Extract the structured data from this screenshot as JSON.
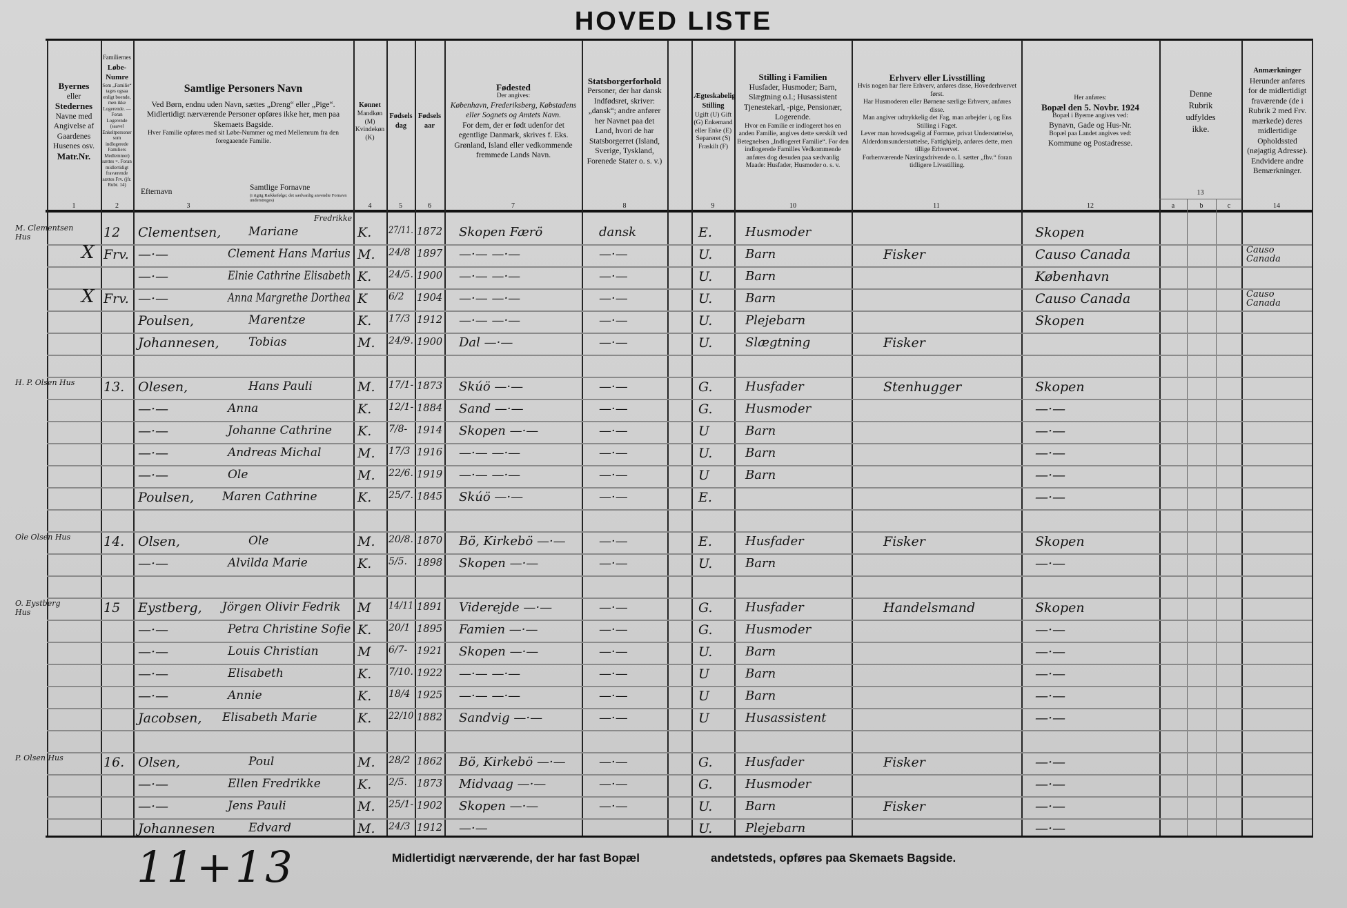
{
  "title": "HOVED LISTE",
  "header": {
    "col1": [
      "Byernes",
      "eller",
      "Stedernes",
      "Navne med Angivelse af Gaardenes Husenes osv.",
      "Matr.Nr."
    ],
    "col2": [
      "Familiernes",
      "Løbe-Numre",
      "Som „Familie“ tages ogsaa enligt boende, men ikke Logerende. — Foran Logerende (saavel Enkeltpersoner som indlogerede Familiers Medlemmer) sættes ×. Foran midlertidigt fraværende sættes Frv. (jfr. Rubr. 14)"
    ],
    "col3": [
      "Samtlige Personers Navn",
      "Ved Børn, endnu uden Navn, sættes „Dreng“ eller „Pige“.",
      "Midlertidigt nærværende Personer opføres ikke her, men paa Skemaets Bagside.",
      "Hver Familie opføres med sit Løbe-Nummer og med Mellemrum fra den foregaaende Familie."
    ],
    "col3_surname": "Efternavn",
    "col3_firstnames": "Samtlige Fornavne",
    "col3_firstnames_note": "(i rigtig Rækkefølge; det sædvanlig anvendte Fornavn understreges)",
    "col4": [
      "Kønnet",
      "Mandkøn (M)",
      "Kvindekøn (K)"
    ],
    "col5": "Fødselsdag",
    "col6": "Fødselsaar",
    "col7": [
      "Fødested",
      "Der angives:",
      "København, Frederiksberg, Købstadens eller Sognets og Amtets Navn.",
      "For dem, der er født udenfor det egentlige Danmark, skrives f. Eks. Grønland, Island eller vedkommende fremmede Lands Navn."
    ],
    "col8": [
      "Statsborgerforhold",
      "Personer, der har dansk Indfødsret, skriver: „dansk“; andre anfører her Navnet paa det Land, hvori de har Statsborgerret (Island, Sverige, Tyskland, Forenede Stater o. s. v.)"
    ],
    "col9": [
      "Ægteskabelig Stilling",
      "Ugift (U) Gift (G) Enkemand eller Enke (E) Separeret (S) Fraskilt (F)"
    ],
    "col10": [
      "Stilling i Familien",
      "Husfader, Husmoder; Barn, Slægtning o.l.; Husassistent Tjenestekarl, -pige, Pensionær, Logerende.",
      "Hvor en Familie er indlogeret hos en anden Familie, angives dette særskilt ved Betegnelsen „Indlogeret Familie“. For den indlogerede Familles Vedkommende anføres dog desuden paa sædvanlig Maade: Husfader, Husmoder o. s. v."
    ],
    "col11": [
      "Erhverv eller Livsstilling",
      "Hvis nogen har flere Erhverv, anføres disse, Hovederhvervet først.",
      "Har Husmoderen eller Børnene særlige Erhverv, anføres disse.",
      "Man angiver udtrykkelig det Fag, man arbejder i, og Ens Stilling i Faget.",
      "Lever man hovedsagelig af Formue, privat Understøttelse, Alderdomsunderstøttelse, Fattighjælp, anføres dette, men tillige Erhvervet.",
      "Forhenværende Næringsdrivende o. l. sætter „fhv.“ foran tidligere Livsstilling."
    ],
    "col12": [
      "Her anføres:",
      "Bopæl den 5. Novbr. 1924",
      "Bopæl i Byerne angives ved:",
      "Bynavn, Gade og Hus-Nr.",
      "Bopæl paa Landet angives ved:",
      "Kommune og Postadresse."
    ],
    "col13": [
      "Denne Rubrik udfyldes ikke."
    ],
    "col13_sub": [
      "a",
      "b",
      "c"
    ],
    "col14": [
      "Anmærkninger",
      "Herunder anføres for de midlertidigt fraværende (de i Rubrik 2 med Frv. mærkede) deres midlertidige Opholdssted (nøjagtig Adresse). Endvidere andre Bemærkninger."
    ],
    "numbers": [
      "1",
      "2",
      "3",
      "4",
      "5",
      "6",
      "7",
      "8",
      "9",
      "10",
      "11",
      "12",
      "13",
      "14"
    ]
  },
  "rows": [
    {
      "place": "M. Clementsen Hus",
      "no": "12",
      "surname": "Clementsen,",
      "first": "Mariane",
      "first_extra": "Fredrikke",
      "sex": "K.",
      "day": "27/11.",
      "year": "1872",
      "birth": "Skopen Færö",
      "cit": "dansk",
      "mar": "E.",
      "pos": "Husmoder",
      "occ": "",
      "res": "Skopen",
      "note": ""
    },
    {
      "place": "",
      "mark": "X",
      "no": "Frv.",
      "surname": "—·—",
      "first": "Clement Hans Marius",
      "sex": "M.",
      "day": "24/8",
      "year": "1897",
      "birth": "—·— —·—",
      "cit": "—·—",
      "mar": "U.",
      "pos": "Barn",
      "occ": "Fisker",
      "res": "Causo Canada",
      "note": "Causo Canada"
    },
    {
      "place": "",
      "no": "",
      "surname": "—·—",
      "first": "Elnie Cathrine Elisabeth",
      "sex": "K.",
      "day": "24/5.",
      "year": "1900",
      "birth": "—·— —·—",
      "cit": "—·—",
      "mar": "U.",
      "pos": "Barn",
      "occ": "",
      "res": "København",
      "note": ""
    },
    {
      "place": "",
      "mark": "X",
      "no": "Frv.",
      "surname": "—·—",
      "first": "Anna Margrethe Dorthea",
      "sex": "K",
      "day": "6/2",
      "year": "1904",
      "birth": "—·— —·—",
      "cit": "—·—",
      "mar": "U.",
      "pos": "Barn",
      "occ": "",
      "res": "Causo Canada",
      "note": "Causo Canada"
    },
    {
      "place": "",
      "no": "",
      "surname": "Poulsen,",
      "first": "Marentze",
      "sex": "K.",
      "day": "17/3",
      "year": "1912",
      "birth": "—·— —·—",
      "cit": "—·—",
      "mar": "U.",
      "pos": "Plejebarn",
      "occ": "",
      "res": "Skopen",
      "note": ""
    },
    {
      "place": "",
      "no": "",
      "surname": "Johannesen,",
      "first": "Tobias",
      "sex": "M.",
      "day": "24/9.",
      "year": "1900",
      "birth": "Dal  —·—",
      "cit": "—·—",
      "mar": "U.",
      "pos": "Slægtning",
      "occ": "Fisker",
      "res": "",
      "note": ""
    },
    {
      "place": "",
      "no": "",
      "surname": "",
      "first": "",
      "sex": "",
      "day": "",
      "year": "",
      "birth": "",
      "cit": "",
      "mar": "",
      "pos": "",
      "occ": "",
      "res": "",
      "note": ""
    },
    {
      "place": "H. P. Olsen Hus",
      "no": "13.",
      "surname": "Olesen,",
      "first": "Hans Pauli",
      "sex": "M.",
      "day": "17/1-",
      "year": "1873",
      "birth": "Skúö  —·—",
      "cit": "—·—",
      "mar": "G.",
      "pos": "Husfader",
      "occ": "Stenhugger",
      "res": "Skopen",
      "note": ""
    },
    {
      "place": "",
      "no": "",
      "surname": "—·—",
      "first": "Anna",
      "sex": "K.",
      "day": "12/1-",
      "year": "1884",
      "birth": "Sand  —·—",
      "cit": "—·—",
      "mar": "G.",
      "pos": "Husmoder",
      "occ": "",
      "res": "—·—",
      "note": ""
    },
    {
      "place": "",
      "no": "",
      "surname": "—·—",
      "first": "Johanne Cathrine",
      "sex": "K.",
      "day": "7/8-",
      "year": "1914",
      "birth": "Skopen —·—",
      "cit": "—·—",
      "mar": "U",
      "pos": "Barn",
      "occ": "",
      "res": "—·—",
      "note": ""
    },
    {
      "place": "",
      "no": "",
      "surname": "—·—",
      "first": "Andreas Michal",
      "sex": "M.",
      "day": "17/3",
      "year": "1916",
      "birth": "—·— —·—",
      "cit": "—·—",
      "mar": "U.",
      "pos": "Barn",
      "occ": "",
      "res": "—·—",
      "note": ""
    },
    {
      "place": "",
      "no": "",
      "surname": "—·—",
      "first": "Ole",
      "sex": "M.",
      "day": "22/6.",
      "year": "1919",
      "birth": "—·— —·—",
      "cit": "—·—",
      "mar": "U",
      "pos": "Barn",
      "occ": "",
      "res": "—·—",
      "note": ""
    },
    {
      "place": "",
      "no": "",
      "surname": "Poulsen,",
      "first": "Maren Cathrine",
      "sex": "K.",
      "day": "25/7.",
      "year": "1845",
      "birth": "Skúö  —·—",
      "cit": "—·—",
      "mar": "E.",
      "pos": "",
      "occ": "",
      "res": "—·—",
      "note": ""
    },
    {
      "place": "",
      "no": "",
      "surname": "",
      "first": "",
      "sex": "",
      "day": "",
      "year": "",
      "birth": "",
      "cit": "",
      "mar": "",
      "pos": "",
      "occ": "",
      "res": "",
      "note": ""
    },
    {
      "place": "Ole Olsen Hus",
      "no": "14.",
      "surname": "Olsen,",
      "first": "Ole",
      "sex": "M.",
      "day": "20/8.",
      "year": "1870",
      "birth": "Bö, Kirkebö —·—",
      "cit": "—·—",
      "mar": "E.",
      "pos": "Husfader",
      "occ": "Fisker",
      "res": "Skopen",
      "note": ""
    },
    {
      "place": "",
      "no": "",
      "surname": "—·—",
      "first": "Alvilda Marie",
      "sex": "K.",
      "day": "5/5.",
      "year": "1898",
      "birth": "Skopen —·—",
      "cit": "—·—",
      "mar": "U.",
      "pos": "Barn",
      "occ": "",
      "res": "—·—",
      "note": ""
    },
    {
      "place": "",
      "no": "",
      "surname": "",
      "first": "",
      "sex": "",
      "day": "",
      "year": "",
      "birth": "",
      "cit": "",
      "mar": "",
      "pos": "",
      "occ": "",
      "res": "",
      "note": ""
    },
    {
      "place": "O. Eystberg Hus",
      "no": "15",
      "surname": "Eystberg,",
      "first": "Jörgen Olivir Fedrik",
      "sex": "M",
      "day": "14/11",
      "year": "1891",
      "birth": "Viderejde —·—",
      "cit": "—·—",
      "mar": "G.",
      "pos": "Husfader",
      "occ": "Handelsmand",
      "res": "Skopen",
      "note": ""
    },
    {
      "place": "",
      "no": "",
      "surname": "—·—",
      "first": "Petra Christine Sofie",
      "sex": "K.",
      "day": "20/1",
      "year": "1895",
      "birth": "Famien —·—",
      "cit": "—·—",
      "mar": "G.",
      "pos": "Husmoder",
      "occ": "",
      "res": "—·—",
      "note": ""
    },
    {
      "place": "",
      "no": "",
      "surname": "—·—",
      "first": "Louis Christian",
      "sex": "M",
      "day": "6/7-",
      "year": "1921",
      "birth": "Skopen —·—",
      "cit": "—·—",
      "mar": "U.",
      "pos": "Barn",
      "occ": "",
      "res": "—·—",
      "note": ""
    },
    {
      "place": "",
      "no": "",
      "surname": "—·—",
      "first": "Elisabeth",
      "sex": "K.",
      "day": "7/10.",
      "year": "1922",
      "birth": "—·— —·—",
      "cit": "—·—",
      "mar": "U",
      "pos": "Barn",
      "occ": "",
      "res": "—·—",
      "note": ""
    },
    {
      "place": "",
      "no": "",
      "surname": "—·—",
      "first": "Annie",
      "sex": "K.",
      "day": "18/4",
      "year": "1925",
      "birth": "—·— —·—",
      "cit": "—·—",
      "mar": "U",
      "pos": "Barn",
      "occ": "",
      "res": "—·—",
      "note": ""
    },
    {
      "place": "",
      "no": "",
      "surname": "Jacobsen,",
      "first": "Elisabeth Marie",
      "sex": "K.",
      "day": "22/10",
      "year": "1882",
      "birth": "Sandvig —·—",
      "cit": "—·—",
      "mar": "U",
      "pos": "Husassistent",
      "occ": "",
      "res": "—·—",
      "note": ""
    },
    {
      "place": "",
      "no": "",
      "surname": "",
      "first": "",
      "sex": "",
      "day": "",
      "year": "",
      "birth": "",
      "cit": "",
      "mar": "",
      "pos": "",
      "occ": "",
      "res": "",
      "note": ""
    },
    {
      "place": "P. Olsen Hus",
      "no": "16.",
      "surname": "Olsen,",
      "first": "Poul",
      "sex": "M.",
      "day": "28/2",
      "year": "1862",
      "birth": "Bö, Kirkebö —·—",
      "cit": "—·—",
      "mar": "G.",
      "pos": "Husfader",
      "occ": "Fisker",
      "res": "—·—",
      "note": ""
    },
    {
      "place": "",
      "no": "",
      "surname": "—·—",
      "first": "Ellen Fredrikke",
      "sex": "K.",
      "day": "2/5.",
      "year": "1873",
      "birth": "Midvaag —·—",
      "cit": "—·—",
      "mar": "G.",
      "pos": "Husmoder",
      "occ": "",
      "res": "—·—",
      "note": ""
    },
    {
      "place": "",
      "no": "",
      "surname": "—·—",
      "first": "Jens Pauli",
      "sex": "M.",
      "day": "25/1-",
      "year": "1902",
      "birth": "Skopen —·—",
      "cit": "—·—",
      "mar": "U.",
      "pos": "Barn",
      "occ": "Fisker",
      "res": "—·—",
      "note": ""
    },
    {
      "place": "",
      "no": "",
      "surname": "Johannesen",
      "first": "Edvard",
      "sex": "M.",
      "day": "24/3",
      "year": "1912",
      "birth": "—·—",
      "cit": "",
      "mar": "U.",
      "pos": "Plejebarn",
      "occ": "",
      "res": "—·—",
      "note": ""
    }
  ],
  "footer": {
    "left": "Midlertidigt nærværende, der har fast Bopæl",
    "right": "andetsteds, opføres paa Skemaets Bagside."
  },
  "tally": "11+13"
}
